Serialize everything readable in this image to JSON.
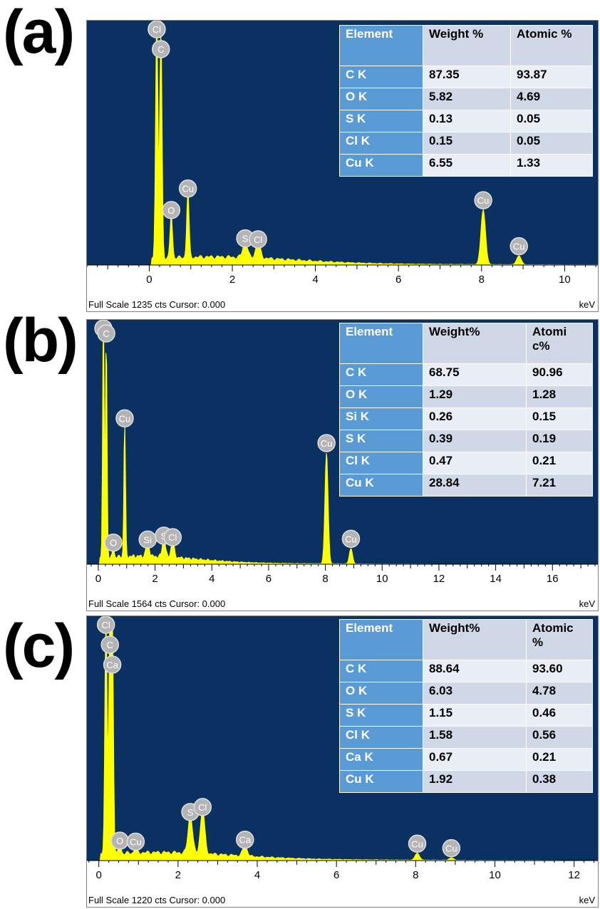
{
  "panels": [
    {
      "label": "(a)",
      "footer": "Full Scale 1235 cts Cursor: 0.000",
      "unit": "keV",
      "table": {
        "headers": [
          "Element",
          "Weight %",
          "Atomic %"
        ],
        "rows": [
          [
            "C K",
            "87.35",
            "93.87"
          ],
          [
            "O K",
            "5.82",
            "4.69"
          ],
          [
            "S K",
            "0.13",
            "0.05"
          ],
          [
            "Cl K",
            "0.15",
            "0.05"
          ],
          [
            "Cu K",
            "6.55",
            "1.33"
          ]
        ]
      }
    },
    {
      "label": "(b)",
      "footer": "Full Scale 1564 cts Cursor: 0.000",
      "unit": "keV",
      "table": {
        "headers": [
          "Element",
          "Weight%",
          "Atomi c%"
        ],
        "rows": [
          [
            "C K",
            "68.75",
            "90.96"
          ],
          [
            "O K",
            "1.29",
            "1.28"
          ],
          [
            "Si K",
            "0.26",
            "0.15"
          ],
          [
            "S K",
            "0.39",
            "0.19"
          ],
          [
            "Cl K",
            "0.47",
            "0.21"
          ],
          [
            "Cu K",
            "28.84",
            "7.21"
          ]
        ]
      }
    },
    {
      "label": "(c)",
      "footer": "Full Scale 1220 cts Cursor: 0.000",
      "unit": "keV",
      "table": {
        "headers": [
          "Element",
          "Weight%",
          "Atomic %"
        ],
        "rows": [
          [
            "C K",
            "88.64",
            "93.60"
          ],
          [
            "O K",
            "6.03",
            "4.78"
          ],
          [
            "S K",
            "1.15",
            "0.46"
          ],
          [
            "Cl K",
            "1.58",
            "0.56"
          ],
          [
            "Ca K",
            "0.67",
            "0.21"
          ],
          [
            "Cu K",
            "1.92",
            "0.38"
          ]
        ]
      }
    }
  ],
  "colors": {
    "plot_bg": "#0b3163",
    "spectrum": "#ffff00",
    "table_header": "#5b9bd5",
    "peak_marker": "#b4b4b4"
  },
  "chart_data": [
    {
      "type": "area",
      "xlabel": "keV",
      "xlim": [
        -1.5,
        10.8
      ],
      "xticks": [
        0,
        2,
        4,
        6,
        8,
        10
      ],
      "ylim": [
        0,
        1235
      ],
      "peaks": [
        {
          "element": "Cl",
          "x": 0.18,
          "y": 1235
        },
        {
          "element": "C",
          "x": 0.28,
          "y": 1180
        },
        {
          "element": "O",
          "x": 0.53,
          "y": 230
        },
        {
          "element": "Cu",
          "x": 0.93,
          "y": 340
        },
        {
          "element": "S",
          "x": 2.31,
          "y": 85
        },
        {
          "element": "Cl",
          "x": 2.62,
          "y": 80
        },
        {
          "element": "Cu",
          "x": 8.04,
          "y": 280
        },
        {
          "element": "Cu",
          "x": 8.9,
          "y": 45
        }
      ]
    },
    {
      "type": "area",
      "xlabel": "keV",
      "xlim": [
        -0.4,
        17.6
      ],
      "xticks": [
        0,
        2,
        4,
        6,
        8,
        10,
        12,
        14,
        16
      ],
      "ylim": [
        0,
        1564
      ],
      "peaks": [
        {
          "element": "Cl",
          "x": 0.18,
          "y": 1564
        },
        {
          "element": "C",
          "x": 0.28,
          "y": 1430
        },
        {
          "element": "O",
          "x": 0.53,
          "y": 75
        },
        {
          "element": "Cu",
          "x": 0.93,
          "y": 880
        },
        {
          "element": "Si",
          "x": 1.74,
          "y": 95
        },
        {
          "element": "S",
          "x": 2.31,
          "y": 120
        },
        {
          "element": "Cl",
          "x": 2.62,
          "y": 110
        },
        {
          "element": "Cu",
          "x": 8.04,
          "y": 720
        },
        {
          "element": "Cu",
          "x": 8.9,
          "y": 100
        }
      ]
    },
    {
      "type": "area",
      "xlabel": "keV",
      "xlim": [
        -0.3,
        12.6
      ],
      "xticks": [
        0,
        2,
        4,
        6,
        8,
        10,
        12
      ],
      "ylim": [
        0,
        1220
      ],
      "peaks": [
        {
          "element": "Cl",
          "x": 0.18,
          "y": 1220
        },
        {
          "element": "C",
          "x": 0.28,
          "y": 1160
        },
        {
          "element": "Ca",
          "x": 0.34,
          "y": 1150
        },
        {
          "element": "O",
          "x": 0.53,
          "y": 50
        },
        {
          "element": "Cu",
          "x": 0.93,
          "y": 45
        },
        {
          "element": "S",
          "x": 2.31,
          "y": 195
        },
        {
          "element": "Cl",
          "x": 2.62,
          "y": 220
        },
        {
          "element": "Ca",
          "x": 3.69,
          "y": 55
        },
        {
          "element": "Cu",
          "x": 8.04,
          "y": 35
        },
        {
          "element": "Cu",
          "x": 8.9,
          "y": 12
        }
      ]
    }
  ]
}
